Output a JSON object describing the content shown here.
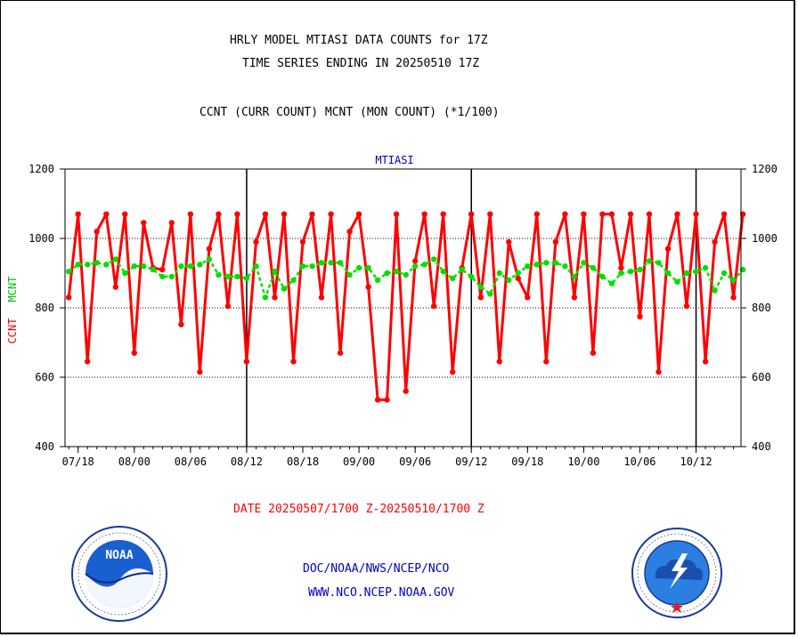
{
  "header": {
    "title_line1": "HRLY MODEL MTIASI DATA COUNTS for 17Z",
    "title_line2": "TIME SERIES ENDING IN 20250510 17Z",
    "subtitle": "CCNT (CURR COUNT) MCNT (MON COUNT) (*1/100)"
  },
  "footer": {
    "date_range": "DATE 20250507/1700 Z-20250510/1700 Z",
    "link1": "DOC/NOAA/NWS/NCEP/NCO",
    "link2": "WWW.NCO.NCEP.NOAA.GOV"
  },
  "chart_data": {
    "type": "line",
    "title": "MTIASI",
    "ylabel_left_ccnt": "CCNT",
    "ylabel_left_mcnt": "MCNT",
    "ylim": [
      400,
      1200
    ],
    "yticks": [
      400,
      600,
      800,
      1000,
      1200
    ],
    "xtick_labels": [
      "07/18",
      "08/00",
      "08/06",
      "08/12",
      "08/18",
      "09/00",
      "09/06",
      "09/12",
      "09/18",
      "10/00",
      "10/06",
      "10/12"
    ],
    "xlim_hours": [
      -0.4,
      71.8
    ],
    "xtick_hours": [
      1,
      7,
      13,
      19,
      25,
      31,
      37,
      43,
      49,
      55,
      61,
      67
    ],
    "day_divider_hours": [
      19,
      43,
      67
    ],
    "grid": "dotted horizontal at 600, 800, 1000",
    "colors": {
      "ccnt": "#ff0000",
      "mcnt": "#00e000",
      "axis": "#000000",
      "title": "#0000c0"
    },
    "series": [
      {
        "name": "CCNT",
        "x_start_hour": 0,
        "x_step_hours": 1,
        "values": [
          830,
          1070,
          645,
          1020,
          1070,
          860,
          1070,
          670,
          1045,
          915,
          910,
          1045,
          752,
          1070,
          615,
          970,
          1070,
          805,
          1070,
          645,
          990,
          1070,
          830,
          1070,
          645,
          990,
          1070,
          830,
          1070,
          670,
          1020,
          1070,
          860,
          535,
          535,
          1070,
          560,
          935,
          1070,
          805,
          1070,
          615,
          915,
          1070,
          830,
          1070,
          645,
          990,
          885,
          830,
          1070,
          645,
          990,
          1070,
          830,
          1070,
          670,
          1070,
          1070,
          915,
          1070,
          775,
          1070,
          615,
          970,
          1070,
          805,
          1070,
          645,
          990,
          1070,
          830,
          1070
        ]
      },
      {
        "name": "MCNT",
        "x_start_hour": 0,
        "x_step_hours": 1,
        "values": [
          905,
          925,
          925,
          930,
          925,
          940,
          900,
          920,
          920,
          910,
          890,
          890,
          920,
          920,
          925,
          940,
          895,
          890,
          890,
          885,
          920,
          830,
          905,
          855,
          880,
          920,
          920,
          930,
          930,
          930,
          895,
          915,
          915,
          880,
          900,
          905,
          895,
          920,
          925,
          940,
          905,
          885,
          910,
          890,
          860,
          840,
          900,
          880,
          900,
          920,
          925,
          930,
          930,
          920,
          890,
          930,
          915,
          890,
          870,
          900,
          905,
          910,
          935,
          930,
          900,
          875,
          900,
          905,
          915,
          850,
          900,
          880,
          910
        ]
      }
    ]
  },
  "logos": {
    "noaa_center_text": "NOAA",
    "noaa_ring_text": "NATIONAL OCEANIC AND ATMOSPHERIC ADMINISTRATION · U.S. DEPARTMENT OF COMMERCE",
    "nws_ring_text": "NATIONAL WEATHER SERVICE"
  }
}
